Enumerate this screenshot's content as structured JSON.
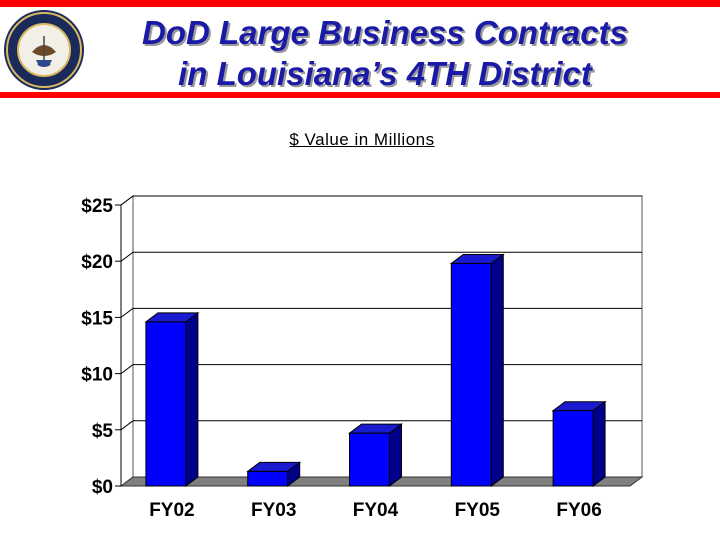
{
  "header": {
    "title_line1": "DoD Large Business Contracts",
    "title_line2": "in Louisiana’s 4TH District",
    "seal_icon": "department-of-the-navy-seal-icon"
  },
  "colors": {
    "accent_bar": "#ff0000",
    "title": "#1a1aa6",
    "bar_face": "#0000ff",
    "bar_side": "#00008b",
    "bar_top": "#1a1ad0",
    "floor": "#808080"
  },
  "chart_data": {
    "type": "bar",
    "title": "",
    "subtitle": "$ Value in Millions",
    "xlabel": "",
    "ylabel": "",
    "categories": [
      "FY02",
      "FY03",
      "FY04",
      "FY05",
      "FY06"
    ],
    "values": [
      14.6,
      1.3,
      4.7,
      19.8,
      6.7
    ],
    "ylim": [
      0,
      25
    ],
    "yticks": [
      0,
      5,
      10,
      15,
      20,
      25
    ],
    "ytick_labels": [
      "$0",
      "$5",
      "$10",
      "$15",
      "$20",
      "$25"
    ],
    "grid": true,
    "legend": "none",
    "style": "3d"
  }
}
